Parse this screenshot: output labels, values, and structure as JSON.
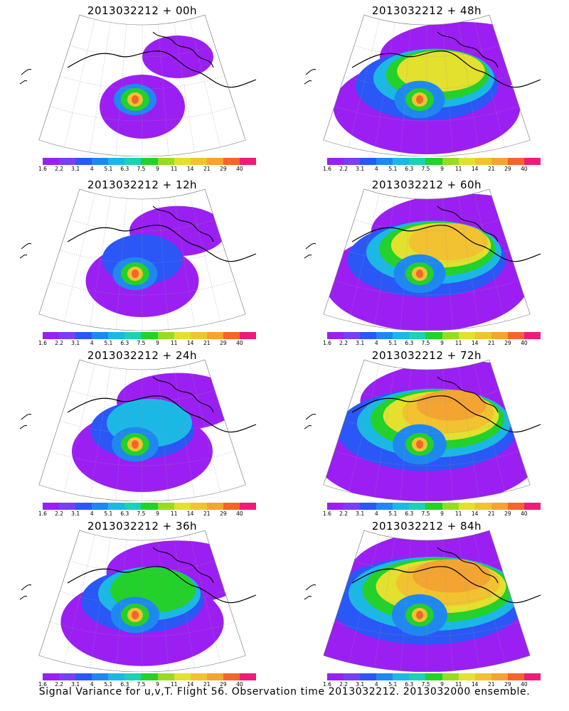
{
  "colorbar": {
    "labels": [
      "1.6",
      "2.2",
      "3.1",
      "4",
      "5.1",
      "6.3",
      "7.5",
      "9",
      "11",
      "14",
      "21",
      "29",
      "40"
    ],
    "colors": [
      "#9b1ff2",
      "#7a3ff0",
      "#2a57f5",
      "#1e88f0",
      "#1bb8e6",
      "#19d3b3",
      "#22d12a",
      "#96dc22",
      "#e3e02e",
      "#f2c230",
      "#f3a431",
      "#f3652b",
      "#ee1b79"
    ]
  },
  "panels": [
    {
      "id": "p00",
      "title": "2013032212 + 00h",
      "level": 0.0
    },
    {
      "id": "p48",
      "title": "2013032212 + 48h",
      "level": 0.55
    },
    {
      "id": "p12",
      "title": "2013032212 + 12h",
      "level": 0.15
    },
    {
      "id": "p60",
      "title": "2013032212 + 60h",
      "level": 0.65
    },
    {
      "id": "p24",
      "title": "2013032212 + 24h",
      "level": 0.3
    },
    {
      "id": "p72",
      "title": "2013032212 + 72h",
      "level": 0.78
    },
    {
      "id": "p36",
      "title": "2013032212 + 36h",
      "level": 0.42
    },
    {
      "id": "p84",
      "title": "2013032212 + 84h",
      "level": 0.9
    }
  ],
  "footer": "Signal Variance for u,v,T. Flight 56. Observation time 2013032212. 2013032000 ensemble."
}
